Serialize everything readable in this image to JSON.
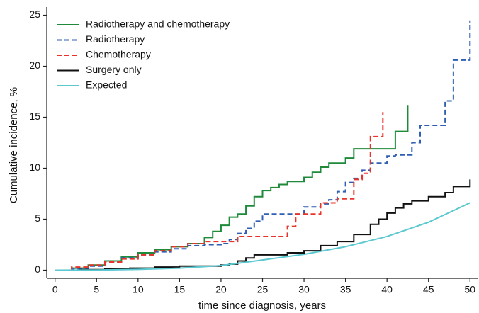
{
  "chart_data": {
    "type": "line",
    "x_label": "time since diagnosis, years",
    "y_label": "Cumulative incidence, %",
    "xlim": [
      -1,
      51
    ],
    "xticks": [
      0,
      5,
      10,
      15,
      20,
      25,
      30,
      35,
      40,
      45,
      50
    ],
    "ylim": [
      -0.8,
      25.8
    ],
    "yticks": [
      0,
      5,
      10,
      15,
      20,
      25
    ],
    "grid": false,
    "legend": "upper left",
    "series": [
      {
        "name": "Radiotherapy and chemotherapy",
        "color": "#1f8a3a",
        "dash": "solid",
        "step": true,
        "x": [
          0,
          2,
          4,
          6,
          8,
          10,
          12,
          14,
          16,
          18,
          19,
          20,
          21,
          22,
          23,
          24,
          25,
          26,
          27,
          28,
          30,
          31,
          32,
          33,
          35,
          36,
          41,
          42.5
        ],
        "values": [
          0,
          0.2,
          0.5,
          0.9,
          1.3,
          1.7,
          2.0,
          2.3,
          2.6,
          3.2,
          3.8,
          4.4,
          5.2,
          5.5,
          6.3,
          7.2,
          7.8,
          8.1,
          8.4,
          8.7,
          9.1,
          9.6,
          10.1,
          10.5,
          11.0,
          11.9,
          13.6,
          16.2
        ]
      },
      {
        "name": "Radiotherapy",
        "color": "#2f5fb3",
        "dash": "dashed",
        "step": true,
        "x": [
          0,
          2,
          4,
          6,
          8,
          10,
          12,
          14,
          16,
          18,
          20,
          21,
          22,
          23,
          24,
          25,
          30,
          32,
          33,
          34,
          35,
          36,
          37,
          38,
          40,
          41,
          43,
          44,
          47,
          48,
          50
        ],
        "values": [
          0,
          0.1,
          0.4,
          0.8,
          1.2,
          1.5,
          1.8,
          2.1,
          2.4,
          2.5,
          2.6,
          3.0,
          3.6,
          4.1,
          4.8,
          5.5,
          6.2,
          6.5,
          6.9,
          7.7,
          8.6,
          9.0,
          9.8,
          10.5,
          11.2,
          11.3,
          12.5,
          14.2,
          16.6,
          20.6,
          24.5
        ]
      },
      {
        "name": "Chemotherapy",
        "color": "#e8332a",
        "dash": "dashed",
        "step": true,
        "x": [
          0,
          2,
          4,
          6,
          8,
          10,
          12,
          14,
          16,
          18,
          22,
          28,
          29,
          32,
          34,
          36,
          37,
          38,
          39.5
        ],
        "values": [
          0,
          0.3,
          0.5,
          0.8,
          1.1,
          1.5,
          1.9,
          2.3,
          2.6,
          2.8,
          3.3,
          4.3,
          5.5,
          6.6,
          7.0,
          8.9,
          9.5,
          13.1,
          15.5
        ]
      },
      {
        "name": "Surgery only",
        "color": "#111111",
        "dash": "solid",
        "step": true,
        "x": [
          0,
          3,
          6,
          9,
          12,
          15,
          20,
          21,
          22,
          23,
          24,
          28,
          30,
          32,
          34,
          36,
          38,
          39,
          40,
          41,
          42,
          43,
          45,
          47,
          48,
          50
        ],
        "values": [
          0,
          0.05,
          0.1,
          0.2,
          0.3,
          0.4,
          0.5,
          0.6,
          0.9,
          1.2,
          1.5,
          1.7,
          1.9,
          2.4,
          2.8,
          3.5,
          4.5,
          5.0,
          5.6,
          6.1,
          6.5,
          6.8,
          7.2,
          7.6,
          8.2,
          8.9
        ]
      },
      {
        "name": "Expected",
        "color": "#5cc8d0",
        "dash": "solid",
        "step": false,
        "x": [
          0,
          5,
          10,
          15,
          20,
          25,
          30,
          35,
          40,
          45,
          50
        ],
        "values": [
          0,
          0.02,
          0.08,
          0.2,
          0.45,
          1.0,
          1.55,
          2.3,
          3.3,
          4.7,
          6.6
        ]
      }
    ]
  }
}
